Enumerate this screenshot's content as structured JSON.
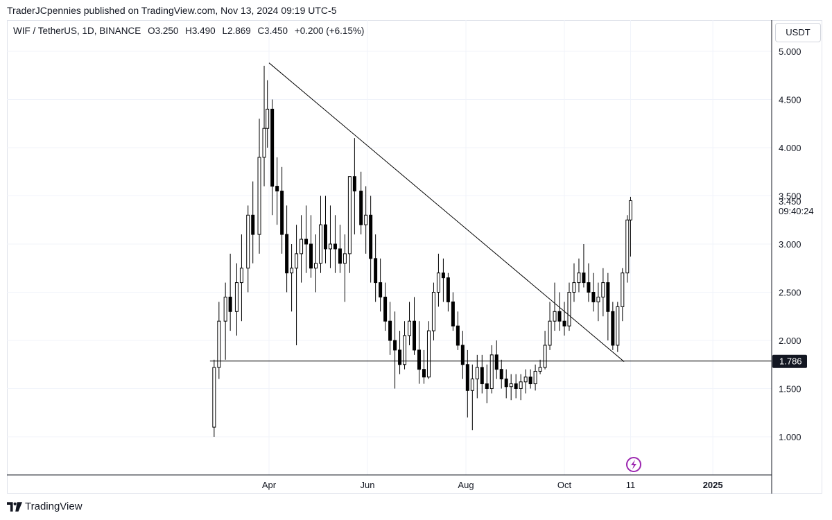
{
  "header": {
    "publisher_line": "TraderJCpennies published on TradingView.com, Nov 13, 2024 09:19 UTC-5"
  },
  "symbol": {
    "name": "WIF / TetherUS, 1D, BINANCE",
    "open": "O3.250",
    "high": "H3.490",
    "low": "L2.869",
    "close": "C3.450",
    "change": "+0.200 (+6.15%)"
  },
  "currency_button": "USDT",
  "footer": {
    "brand": "TradingView"
  },
  "colors": {
    "candles": "#000000",
    "trendline": "#000000",
    "support_label_bg": "#131722",
    "alert_icon": "#9c27b0",
    "grid": "#f0f3fa",
    "axis": "#131722"
  },
  "icons": {
    "alert": "lightning-icon",
    "logo": "tradingview-logo-icon"
  },
  "chart_data": {
    "type": "candlestick",
    "title": "WIF / TetherUS, 1D, BINANCE",
    "ylabel": "USDT",
    "ylim": [
      0.6,
      5.3
    ],
    "y_ticks": [
      "1.000",
      "1.500",
      "2.000",
      "2.500",
      "3.000",
      "3.500",
      "4.000",
      "4.500",
      "5.000"
    ],
    "x_ticks": [
      "Apr",
      "Jun",
      "Aug",
      "Oct",
      "11",
      "2025"
    ],
    "x_tick_dates": [
      "2024-04-01",
      "2024-06-01",
      "2024-08-01",
      "2024-10-01",
      "2024-11-11",
      "2025-01-01"
    ],
    "last_price": "3.450",
    "countdown": "09:40:24",
    "support_level": {
      "value": "1.786",
      "from": "2024-02-27",
      "to": "2025-01-15"
    },
    "trendline": {
      "from": [
        "2024-04-01",
        4.88
      ],
      "to": [
        "2024-11-07",
        1.78
      ]
    },
    "grid": true,
    "series": [
      {
        "dates": [
          "2024-02-27",
          "2024-03-01",
          "2024-03-05",
          "2024-03-08",
          "2024-03-12",
          "2024-03-15",
          "2024-03-19",
          "2024-03-22",
          "2024-03-26",
          "2024-03-29",
          "2024-03-31",
          "2024-04-03",
          "2024-04-06",
          "2024-04-09",
          "2024-04-12",
          "2024-04-15",
          "2024-04-18",
          "2024-04-21",
          "2024-04-24",
          "2024-04-27",
          "2024-04-30",
          "2024-05-03",
          "2024-05-06",
          "2024-05-09",
          "2024-05-12",
          "2024-05-15",
          "2024-05-18",
          "2024-05-21",
          "2024-05-24",
          "2024-05-28",
          "2024-05-31",
          "2024-06-03",
          "2024-06-06",
          "2024-06-09",
          "2024-06-12",
          "2024-06-15",
          "2024-06-18",
          "2024-06-21",
          "2024-06-24",
          "2024-06-27",
          "2024-06-30",
          "2024-07-03",
          "2024-07-06",
          "2024-07-09",
          "2024-07-12",
          "2024-07-15",
          "2024-07-18",
          "2024-07-21",
          "2024-07-24",
          "2024-07-27",
          "2024-07-30",
          "2024-08-02",
          "2024-08-05",
          "2024-08-08",
          "2024-08-11",
          "2024-08-14",
          "2024-08-17",
          "2024-08-20",
          "2024-08-23",
          "2024-08-26",
          "2024-08-29",
          "2024-09-01",
          "2024-09-04",
          "2024-09-07",
          "2024-09-10",
          "2024-09-13",
          "2024-09-16",
          "2024-09-19",
          "2024-09-22",
          "2024-09-25",
          "2024-09-28",
          "2024-10-01",
          "2024-10-04",
          "2024-10-07",
          "2024-10-10",
          "2024-10-13",
          "2024-10-16",
          "2024-10-19",
          "2024-10-22",
          "2024-10-25",
          "2024-10-28",
          "2024-10-31",
          "2024-11-03",
          "2024-11-06",
          "2024-11-09",
          "2024-11-11"
        ],
        "open": [
          1.1,
          1.72,
          2.2,
          2.45,
          2.3,
          2.6,
          2.75,
          3.3,
          3.1,
          3.9,
          4.2,
          4.4,
          3.6,
          3.55,
          3.1,
          2.7,
          2.75,
          2.9,
          3.05,
          3.0,
          2.75,
          2.8,
          3.2,
          2.95,
          3.0,
          2.95,
          2.8,
          2.9,
          3.7,
          3.55,
          3.2,
          3.3,
          2.85,
          2.6,
          2.45,
          2.2,
          2.0,
          1.9,
          1.75,
          2.05,
          2.2,
          1.9,
          1.7,
          1.62,
          2.1,
          2.5,
          2.7,
          2.65,
          2.4,
          2.15,
          1.95,
          1.75,
          1.48,
          1.6,
          1.72,
          1.55,
          1.5,
          1.85,
          1.7,
          1.6,
          1.52,
          1.55,
          1.5,
          1.57,
          1.62,
          1.55,
          1.68,
          1.72,
          1.95,
          2.2,
          2.3,
          2.2,
          2.15,
          2.5,
          2.6,
          2.7,
          2.6,
          2.5,
          2.4,
          2.45,
          2.6,
          2.3,
          1.95,
          2.35,
          2.7,
          3.25
        ],
        "high": [
          1.8,
          2.4,
          2.6,
          2.9,
          2.8,
          3.1,
          3.4,
          3.65,
          4.3,
          4.85,
          4.7,
          4.5,
          3.9,
          3.8,
          3.4,
          3.0,
          3.2,
          3.3,
          3.4,
          3.3,
          3.1,
          3.5,
          3.5,
          3.4,
          3.3,
          3.2,
          3.1,
          3.7,
          4.1,
          3.75,
          3.6,
          3.5,
          3.1,
          2.85,
          2.6,
          2.4,
          2.3,
          2.1,
          2.2,
          2.4,
          2.45,
          2.2,
          1.9,
          2.2,
          2.6,
          2.9,
          2.85,
          2.7,
          2.5,
          2.3,
          2.1,
          1.9,
          1.75,
          1.85,
          1.85,
          1.75,
          1.95,
          2.0,
          1.8,
          1.7,
          1.65,
          1.65,
          1.65,
          1.7,
          1.7,
          1.75,
          1.8,
          2.1,
          2.4,
          2.6,
          2.5,
          2.4,
          2.6,
          2.8,
          2.85,
          3.0,
          2.8,
          2.7,
          2.6,
          2.75,
          2.7,
          2.4,
          2.4,
          2.75,
          3.3,
          3.49
        ],
        "low": [
          1.0,
          1.6,
          1.8,
          2.1,
          2.05,
          2.2,
          2.5,
          2.8,
          2.9,
          3.6,
          4.0,
          3.3,
          3.2,
          2.9,
          2.5,
          2.3,
          1.95,
          2.6,
          2.7,
          2.65,
          2.5,
          2.7,
          2.8,
          2.75,
          2.7,
          2.7,
          2.4,
          2.7,
          3.1,
          3.1,
          2.9,
          2.6,
          2.4,
          2.3,
          2.1,
          1.85,
          1.5,
          1.65,
          1.7,
          1.95,
          1.85,
          1.55,
          1.55,
          1.6,
          2.0,
          2.35,
          2.4,
          2.3,
          2.1,
          1.9,
          1.6,
          1.2,
          1.07,
          1.4,
          1.45,
          1.35,
          1.45,
          1.6,
          1.5,
          1.4,
          1.38,
          1.4,
          1.38,
          1.45,
          1.5,
          1.48,
          1.65,
          1.7,
          1.9,
          2.1,
          2.1,
          2.05,
          2.1,
          2.4,
          2.5,
          2.55,
          2.4,
          2.3,
          2.2,
          2.25,
          2.0,
          1.9,
          1.88,
          2.2,
          2.6,
          2.87
        ],
        "close": [
          1.72,
          2.2,
          2.45,
          2.3,
          2.6,
          2.75,
          3.3,
          3.1,
          3.9,
          4.2,
          4.4,
          3.6,
          3.55,
          3.1,
          2.7,
          2.75,
          2.9,
          3.05,
          3.0,
          2.75,
          2.8,
          3.2,
          2.95,
          3.0,
          2.95,
          2.8,
          2.9,
          3.7,
          3.55,
          3.2,
          3.3,
          2.85,
          2.6,
          2.45,
          2.2,
          2.0,
          1.9,
          1.75,
          2.05,
          2.2,
          1.9,
          1.7,
          1.62,
          2.1,
          2.5,
          2.7,
          2.65,
          2.4,
          2.15,
          1.95,
          1.75,
          1.48,
          1.6,
          1.72,
          1.55,
          1.5,
          1.85,
          1.7,
          1.6,
          1.52,
          1.55,
          1.5,
          1.57,
          1.62,
          1.55,
          1.68,
          1.72,
          1.95,
          2.2,
          2.3,
          2.2,
          2.15,
          2.5,
          2.6,
          2.7,
          2.6,
          2.5,
          2.4,
          2.45,
          2.6,
          2.3,
          1.95,
          2.35,
          2.7,
          3.25,
          3.45
        ]
      }
    ]
  }
}
